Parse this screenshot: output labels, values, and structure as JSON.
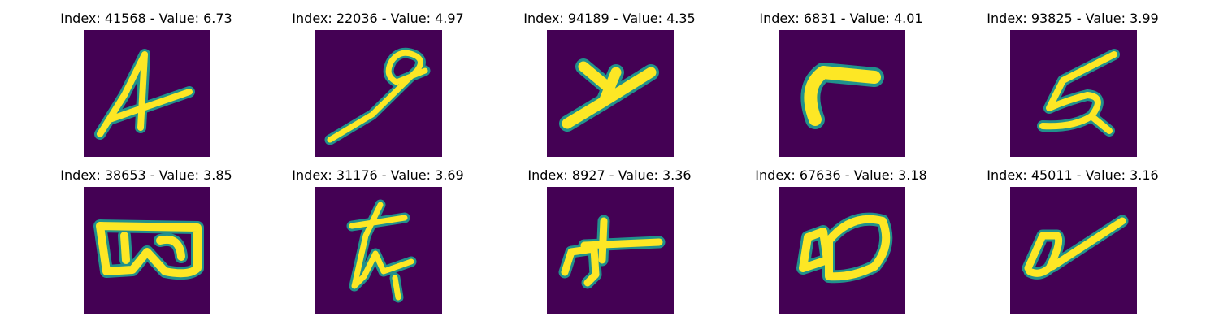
{
  "colors": {
    "background": "#440154",
    "edge": "#21918c",
    "ink": "#fde725"
  },
  "panels": [
    {
      "title": "Index: 41568 - Value: 6.73"
    },
    {
      "title": "Index: 22036 - Value: 4.97"
    },
    {
      "title": "Index: 94189 - Value: 4.35"
    },
    {
      "title": "Index: 6831 - Value: 4.01"
    },
    {
      "title": "Index: 93825 - Value: 3.99"
    },
    {
      "title": "Index: 38653 - Value: 3.85"
    },
    {
      "title": "Index: 31176 - Value: 3.69"
    },
    {
      "title": "Index: 8927 - Value: 3.36"
    },
    {
      "title": "Index: 67636 - Value: 3.18"
    },
    {
      "title": "Index: 45011 - Value: 3.16"
    }
  ]
}
